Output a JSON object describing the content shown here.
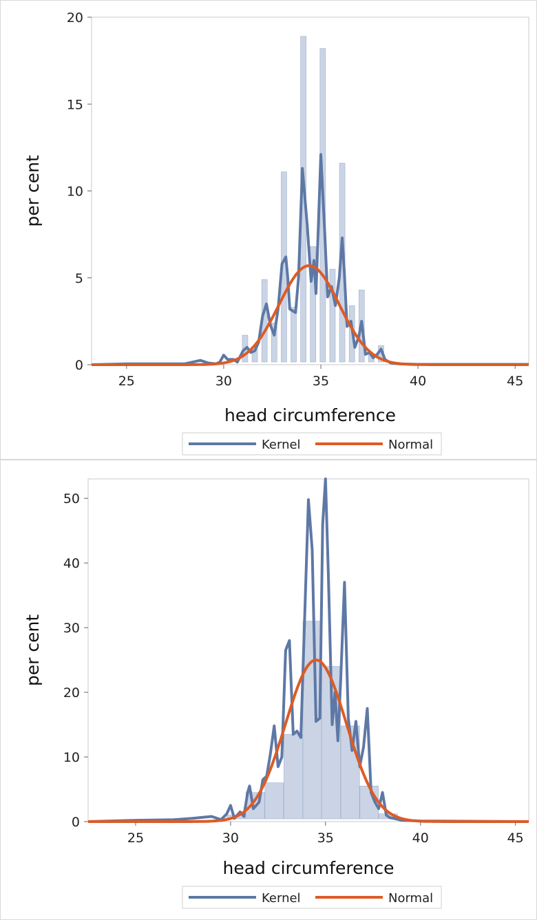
{
  "chart_data": [
    {
      "type": "histogram",
      "xlabel": "head circumference",
      "ylabel": "per cent",
      "xlim": [
        23.2,
        45.7
      ],
      "ylim": [
        0,
        20
      ],
      "xticks": [
        25,
        30,
        35,
        40,
        45
      ],
      "yticks": [
        0,
        5,
        10,
        15,
        20
      ],
      "grid": false,
      "legend_position": "bottom-center",
      "bar_color": "#c4cfe2",
      "bars": [
        {
          "x": 31.1,
          "value": 1.7
        },
        {
          "x": 31.6,
          "value": 0.9
        },
        {
          "x": 32.1,
          "value": 4.9
        },
        {
          "x": 32.6,
          "value": 2.4
        },
        {
          "x": 33.1,
          "value": 11.1
        },
        {
          "x": 33.6,
          "value": 3.3
        },
        {
          "x": 34.1,
          "value": 18.9
        },
        {
          "x": 34.6,
          "value": 6.8
        },
        {
          "x": 35.1,
          "value": 18.2
        },
        {
          "x": 35.6,
          "value": 5.5
        },
        {
          "x": 36.1,
          "value": 11.6
        },
        {
          "x": 36.6,
          "value": 3.4
        },
        {
          "x": 37.1,
          "value": 4.3
        },
        {
          "x": 37.6,
          "value": 0.6
        },
        {
          "x": 38.1,
          "value": 1.1
        }
      ],
      "series": [
        {
          "name": "Kernel",
          "color": "#5e78a6",
          "points": [
            [
              23.2,
              0
            ],
            [
              25,
              0.05
            ],
            [
              26,
              0.05
            ],
            [
              27,
              0.05
            ],
            [
              28,
              0.05
            ],
            [
              28.8,
              0.25
            ],
            [
              29.2,
              0.1
            ],
            [
              29.6,
              0.05
            ],
            [
              29.8,
              0.15
            ],
            [
              30.0,
              0.55
            ],
            [
              30.2,
              0.3
            ],
            [
              30.5,
              0.3
            ],
            [
              30.7,
              0.15
            ],
            [
              31.0,
              0.8
            ],
            [
              31.2,
              1.0
            ],
            [
              31.4,
              0.7
            ],
            [
              31.6,
              0.8
            ],
            [
              31.8,
              1.3
            ],
            [
              32.0,
              2.8
            ],
            [
              32.2,
              3.5
            ],
            [
              32.4,
              2.3
            ],
            [
              32.6,
              1.7
            ],
            [
              32.8,
              3.2
            ],
            [
              33.0,
              5.8
            ],
            [
              33.2,
              6.2
            ],
            [
              33.3,
              5.0
            ],
            [
              33.4,
              3.2
            ],
            [
              33.7,
              3.0
            ],
            [
              33.85,
              5.0
            ],
            [
              34.05,
              11.3
            ],
            [
              34.3,
              8.0
            ],
            [
              34.5,
              4.8
            ],
            [
              34.65,
              6.0
            ],
            [
              34.75,
              4.1
            ],
            [
              35.0,
              12.1
            ],
            [
              35.2,
              7.6
            ],
            [
              35.35,
              3.9
            ],
            [
              35.55,
              4.5
            ],
            [
              35.75,
              3.4
            ],
            [
              35.95,
              5.0
            ],
            [
              36.1,
              7.3
            ],
            [
              36.2,
              5.5
            ],
            [
              36.35,
              2.2
            ],
            [
              36.55,
              2.5
            ],
            [
              36.75,
              1.0
            ],
            [
              36.95,
              1.6
            ],
            [
              37.1,
              2.5
            ],
            [
              37.3,
              0.6
            ],
            [
              37.5,
              0.7
            ],
            [
              37.7,
              0.4
            ],
            [
              37.9,
              0.6
            ],
            [
              38.1,
              0.9
            ],
            [
              38.3,
              0.3
            ],
            [
              38.6,
              0.1
            ],
            [
              39,
              0.05
            ],
            [
              40,
              0.02
            ],
            [
              42,
              0.02
            ],
            [
              44,
              0.02
            ],
            [
              45.7,
              0.02
            ]
          ]
        },
        {
          "name": "Normal",
          "color": "#dd5b25",
          "mean": 34.4,
          "sd": 1.55,
          "peak": 5.7
        }
      ]
    },
    {
      "type": "histogram",
      "xlabel": "head circumference",
      "ylabel": "per cent",
      "xlim": [
        22.5,
        45.7
      ],
      "ylim": [
        0,
        53
      ],
      "xticks": [
        25,
        30,
        35,
        40,
        45
      ],
      "yticks": [
        0,
        10,
        20,
        30,
        40,
        50
      ],
      "grid": false,
      "legend_position": "bottom-center",
      "bar_color": "#c4cfe2",
      "bars": [
        {
          "x": 30.3,
          "value": 1.0
        },
        {
          "x": 31.3,
          "value": 4.5
        },
        {
          "x": 32.3,
          "value": 6.0
        },
        {
          "x": 33.3,
          "value": 13.5
        },
        {
          "x": 34.3,
          "value": 31.0
        },
        {
          "x": 35.3,
          "value": 24.0
        },
        {
          "x": 36.3,
          "value": 14.8
        },
        {
          "x": 37.3,
          "value": 5.5
        },
        {
          "x": 38.3,
          "value": 1.2
        }
      ],
      "series": [
        {
          "name": "Kernel",
          "color": "#5e78a6",
          "points": [
            [
              22.5,
              0
            ],
            [
              25,
              0.2
            ],
            [
              27,
              0.3
            ],
            [
              28,
              0.5
            ],
            [
              29,
              0.8
            ],
            [
              29.5,
              0.3
            ],
            [
              29.8,
              1.2
            ],
            [
              30.0,
              2.5
            ],
            [
              30.2,
              0.5
            ],
            [
              30.5,
              1.5
            ],
            [
              30.7,
              0.8
            ],
            [
              30.9,
              4.5
            ],
            [
              31.0,
              5.5
            ],
            [
              31.2,
              2.0
            ],
            [
              31.5,
              3.0
            ],
            [
              31.7,
              6.5
            ],
            [
              31.9,
              7.0
            ],
            [
              32.1,
              10.5
            ],
            [
              32.3,
              14.8
            ],
            [
              32.5,
              8.5
            ],
            [
              32.7,
              10.0
            ],
            [
              32.9,
              26.5
            ],
            [
              33.1,
              28.0
            ],
            [
              33.3,
              13.5
            ],
            [
              33.5,
              14.0
            ],
            [
              33.7,
              13.0
            ],
            [
              33.9,
              31.5
            ],
            [
              34.1,
              49.8
            ],
            [
              34.3,
              42.0
            ],
            [
              34.5,
              15.5
            ],
            [
              34.7,
              16.0
            ],
            [
              34.85,
              46.0
            ],
            [
              35.0,
              53.0
            ],
            [
              35.15,
              38.0
            ],
            [
              35.35,
              15.0
            ],
            [
              35.5,
              20.0
            ],
            [
              35.65,
              12.5
            ],
            [
              35.8,
              22.0
            ],
            [
              36.0,
              37.0
            ],
            [
              36.2,
              16.0
            ],
            [
              36.4,
              11.0
            ],
            [
              36.6,
              15.5
            ],
            [
              36.8,
              8.5
            ],
            [
              37.0,
              11.5
            ],
            [
              37.2,
              17.5
            ],
            [
              37.4,
              4.5
            ],
            [
              37.6,
              3.0
            ],
            [
              37.8,
              2.0
            ],
            [
              38.0,
              4.5
            ],
            [
              38.2,
              1.0
            ],
            [
              38.4,
              0.6
            ],
            [
              38.6,
              0.5
            ],
            [
              39.0,
              0.2
            ],
            [
              40,
              0.1
            ],
            [
              45.7,
              0
            ]
          ]
        },
        {
          "name": "Normal",
          "color": "#dd5b25",
          "mean": 34.5,
          "sd": 1.6,
          "peak": 25.0
        }
      ]
    }
  ],
  "legend": {
    "kernel_label": "Kernel",
    "normal_label": "Normal"
  }
}
